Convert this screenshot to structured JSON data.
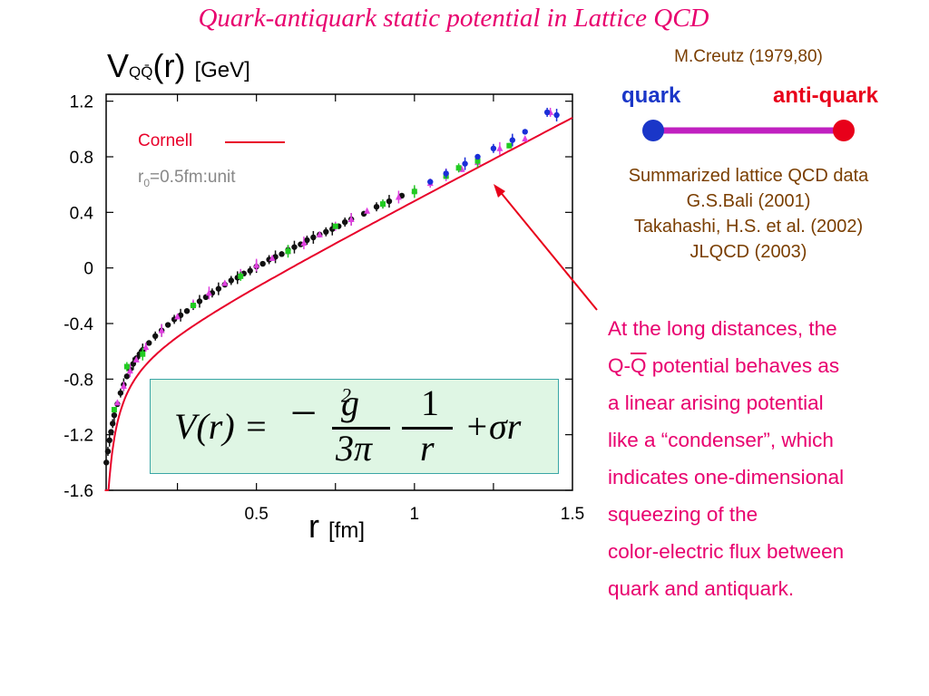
{
  "title": "Quark-antiquark static potential in Lattice QCD",
  "chart_data": {
    "type": "scatter",
    "ylabel": {
      "main": "V",
      "sub": "QQ̄",
      "arg": "(r)",
      "unit": "[GeV]"
    },
    "xlabel": {
      "main": "r",
      "unit": "[fm]"
    },
    "xlim": [
      0,
      1.5
    ],
    "ylim": [
      -1.6,
      1.25
    ],
    "x_ticks": [
      0.5,
      1,
      1.5
    ],
    "x_tick_labels": [
      "0.5",
      "1",
      "1.5"
    ],
    "y_ticks": [
      1.2,
      0.8,
      0.4,
      0,
      -0.4,
      -0.8,
      -1.2,
      -1.6
    ],
    "y_tick_labels": [
      "1.2",
      "0.8",
      "0.4",
      "0",
      "-0.4",
      "-0.8",
      "-1.2",
      "-1.6"
    ],
    "grid": false,
    "legend": [
      {
        "label": "Cornell",
        "color": "#e8002a",
        "style": "line"
      }
    ],
    "unit_note": {
      "pre": "r",
      "sub": "0",
      "post": "=0.5fm:unit"
    },
    "cornell_fit": {
      "x_start": 0.02,
      "x_end": 1.5,
      "y_at_0_1": -0.86,
      "y_at_1_5": 1.15
    },
    "series": [
      {
        "color": "#111111",
        "marker": "circle",
        "x": [
          0.025,
          0.03,
          0.035,
          0.04,
          0.045,
          0.05,
          0.06,
          0.07,
          0.08,
          0.09,
          0.1,
          0.11,
          0.12,
          0.13,
          0.14,
          0.16,
          0.18,
          0.2,
          0.22,
          0.24,
          0.26,
          0.28,
          0.3,
          0.32,
          0.34,
          0.36,
          0.38,
          0.4,
          0.42,
          0.44,
          0.46,
          0.48,
          0.5,
          0.52,
          0.54,
          0.56,
          0.58,
          0.6,
          0.62,
          0.64,
          0.66,
          0.68,
          0.7,
          0.72,
          0.74,
          0.76,
          0.78,
          0.8,
          0.84,
          0.88,
          0.92,
          0.96
        ],
        "y": [
          -1.4,
          -1.32,
          -1.24,
          -1.18,
          -1.12,
          -1.06,
          -0.98,
          -0.9,
          -0.84,
          -0.78,
          -0.73,
          -0.69,
          -0.65,
          -0.62,
          -0.59,
          -0.54,
          -0.49,
          -0.45,
          -0.41,
          -0.37,
          -0.34,
          -0.31,
          -0.27,
          -0.24,
          -0.21,
          -0.18,
          -0.15,
          -0.12,
          -0.09,
          -0.07,
          -0.04,
          -0.02,
          0.01,
          0.03,
          0.06,
          0.08,
          0.1,
          0.13,
          0.15,
          0.17,
          0.2,
          0.22,
          0.24,
          0.26,
          0.28,
          0.3,
          0.33,
          0.35,
          0.39,
          0.44,
          0.48,
          0.52
        ]
      },
      {
        "color": "#e040e0",
        "marker": "triangle",
        "x": [
          0.06,
          0.08,
          0.1,
          0.12,
          0.15,
          0.2,
          0.25,
          0.3,
          0.35,
          0.4,
          0.45,
          0.5,
          0.55,
          0.6,
          0.65,
          0.7,
          0.75,
          0.8,
          0.85,
          0.9,
          0.95,
          1.0,
          1.05,
          1.1,
          1.15,
          1.2,
          1.27,
          1.35,
          1.43
        ],
        "y": [
          -0.97,
          -0.85,
          -0.74,
          -0.66,
          -0.57,
          -0.45,
          -0.35,
          -0.26,
          -0.18,
          -0.11,
          -0.04,
          0.02,
          0.07,
          0.12,
          0.18,
          0.24,
          0.3,
          0.35,
          0.41,
          0.46,
          0.51,
          0.56,
          0.61,
          0.67,
          0.71,
          0.76,
          0.86,
          0.93,
          1.12
        ]
      },
      {
        "color": "#22cc22",
        "marker": "square",
        "x": [
          0.05,
          0.09,
          0.14,
          0.3,
          0.45,
          0.6,
          0.75,
          0.9,
          1.0,
          1.1,
          1.14,
          1.2,
          1.3
        ],
        "y": [
          -1.02,
          -0.71,
          -0.62,
          -0.27,
          -0.06,
          0.12,
          0.3,
          0.46,
          0.55,
          0.66,
          0.72,
          0.77,
          0.88
        ]
      },
      {
        "color": "#1a2ed8",
        "marker": "circle",
        "x": [
          1.05,
          1.1,
          1.16,
          1.2,
          1.25,
          1.31,
          1.35,
          1.42,
          1.45
        ],
        "y": [
          0.62,
          0.68,
          0.75,
          0.8,
          0.86,
          0.92,
          0.98,
          1.12,
          1.1
        ]
      }
    ]
  },
  "formula": {
    "lhs": "V(r) =",
    "minus": "−",
    "num1": "g",
    "num1_exp": "2",
    "den1": "3π",
    "num2": "1",
    "den2": "r",
    "rest": "+σr"
  },
  "credit": "M.Creutz (1979,80)",
  "quark_label": "quark",
  "antiquark_label": "anti-quark",
  "colors": {
    "quark": "#1a36c8",
    "antiquark": "#e8001a",
    "string": "#c020c0"
  },
  "summary": [
    "Summarized lattice QCD data",
    "G.S.Bali (2001)",
    "Takahashi, H.S. et al. (2002)",
    "JLQCD (2003)"
  ],
  "explanation": {
    "line1": "At the long distances, the",
    "line2_pre": "Q-",
    "line2_q": "Q",
    "line2_post": " potential behaves as",
    "line3": "a linear arising potential",
    "line4": "like a “condenser”, which",
    "line5": "indicates one-dimensional",
    "line6": "squeezing of the",
    "line7": "color-electric flux between",
    "line8": "quark and antiquark."
  }
}
